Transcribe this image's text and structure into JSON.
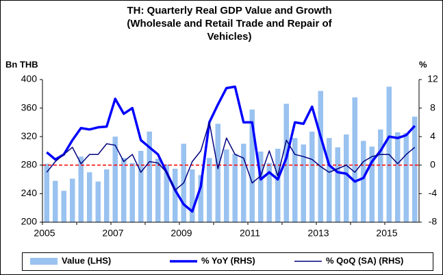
{
  "chart_data": {
    "type": "bar_line",
    "title": [
      "TH: Quarterly Real GDP Value and Growth",
      "(Wholesale and Retail Trade and Repair of",
      "Vehicles)"
    ],
    "ylabel": "Bn THB",
    "y2label": "%",
    "categories": [
      "2005",
      null,
      null,
      null,
      null,
      null,
      null,
      null,
      "2007",
      null,
      null,
      null,
      null,
      null,
      null,
      null,
      "2009",
      null,
      null,
      null,
      null,
      null,
      null,
      null,
      "2011",
      null,
      null,
      null,
      null,
      null,
      null,
      null,
      "2013",
      null,
      null,
      null,
      null,
      null,
      null,
      null,
      "2015",
      null,
      null,
      null
    ],
    "series": [
      {
        "name": "Value (LHS)",
        "type": "bar",
        "color": "#99c2f0",
        "values": [
          282,
          258,
          244,
          261,
          292,
          270,
          257,
          274,
          320,
          290,
          283,
          300,
          327,
          289,
          281,
          275,
          310,
          274,
          266,
          290,
          338,
          302,
          296,
          310,
          358,
          299,
          283,
          303,
          366,
          318,
          309,
          327,
          384,
          318,
          305,
          323,
          375,
          314,
          306,
          330,
          390,
          326,
          325,
          348
        ]
      },
      {
        "name": "% YoY (RHS)",
        "type": "line",
        "axis": "y2",
        "color": "#0000ff",
        "width": 3.5,
        "values": [
          1.8,
          0.8,
          1.5,
          3.5,
          5.2,
          5,
          5.3,
          5.4,
          9.3,
          7.2,
          8,
          3.5,
          2.5,
          1.5,
          -1,
          -3.5,
          -5.5,
          -6.5,
          -3,
          6,
          8.5,
          10.8,
          11,
          6,
          6,
          -2,
          -1,
          -2,
          1,
          6,
          5.8,
          8.2,
          4,
          0,
          -1,
          -1.2,
          -2.3,
          -1.8,
          0.5,
          2,
          4,
          3.8,
          4.2,
          5.5
        ]
      },
      {
        "name": "% QoQ (SA) (RHS)",
        "type": "line",
        "axis": "y2",
        "color": "#000080",
        "width": 1.5,
        "values": [
          -1,
          0.5,
          1.5,
          2.5,
          0.2,
          1.5,
          1.5,
          3,
          2.8,
          0.5,
          1.5,
          -1,
          0.5,
          0.3,
          -1,
          -3.5,
          -2.5,
          0.5,
          2,
          6,
          -0.5,
          3.8,
          1.5,
          1,
          -2.5,
          -1.5,
          2,
          -1.5,
          3.5,
          1.5,
          1.2,
          0.8,
          -0.2,
          -1,
          -0.5,
          0,
          -1,
          0.5,
          1.2,
          1.5,
          1.5,
          0.2,
          1.5,
          2.5
        ]
      }
    ],
    "ylim": [
      200,
      400
    ],
    "yticks": [
      200,
      240,
      280,
      320,
      360,
      400
    ],
    "y2lim": [
      -8,
      12
    ],
    "y2ticks": [
      -8,
      -4,
      0,
      4,
      8,
      12
    ],
    "reference_line": {
      "axis": "y2",
      "value": 0,
      "color": "#ff0000"
    },
    "legend": "bottom"
  }
}
